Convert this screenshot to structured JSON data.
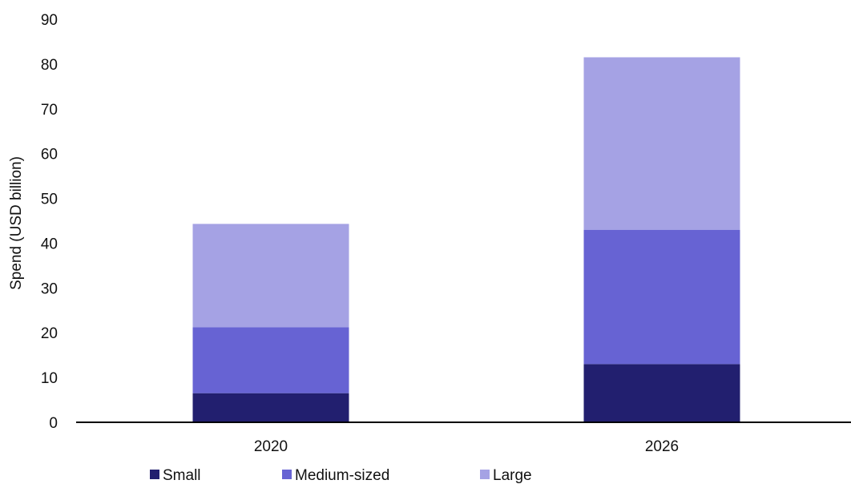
{
  "chart_data": {
    "type": "bar",
    "stacked": true,
    "title": "",
    "xlabel": "",
    "ylabel": "Spend (USD billion)",
    "ylim": [
      0,
      90
    ],
    "yticks": [
      0,
      10,
      20,
      30,
      40,
      50,
      60,
      70,
      80,
      90
    ],
    "categories": [
      "2020",
      "2026"
    ],
    "series": [
      {
        "name": "Small",
        "color": "#221f6f",
        "values": [
          6.5,
          13
        ]
      },
      {
        "name": "Medium-sized",
        "color": "#6763d3",
        "values": [
          14.7,
          30
        ]
      },
      {
        "name": "Large",
        "color": "#a5a2e4",
        "values": [
          23.1,
          38.5
        ]
      }
    ],
    "grid": false,
    "legend_position": "bottom"
  }
}
